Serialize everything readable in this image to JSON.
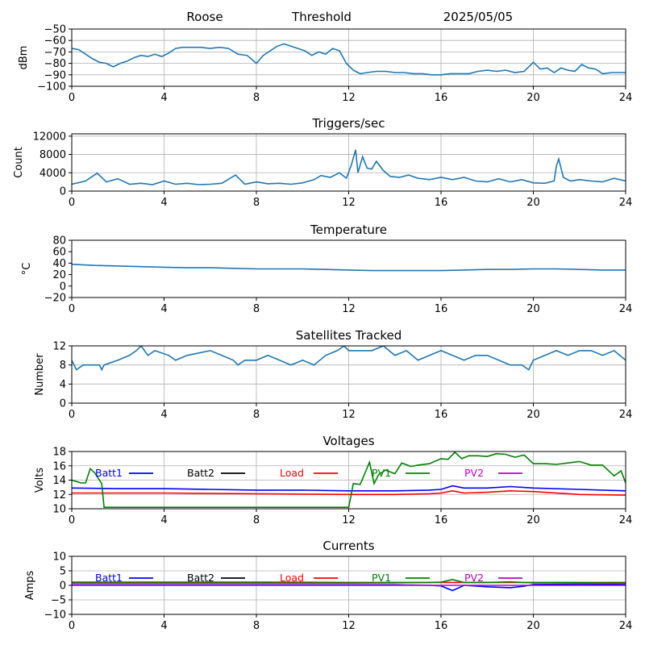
{
  "header": {
    "station": "Roose",
    "mode": "Threshold",
    "date": "2025/05/05"
  },
  "chart_data": [
    {
      "type": "line",
      "title": "",
      "xlabel": "",
      "ylabel": "dBm",
      "xlim": [
        0,
        24
      ],
      "ylim": [
        -100,
        -50
      ],
      "xticks": [
        0,
        4,
        8,
        12,
        16,
        20,
        24
      ],
      "yticks": [
        -100,
        -90,
        -80,
        -70,
        -60,
        -50
      ],
      "grid": true,
      "series": [
        {
          "color": "#1f77b4",
          "x": [
            0,
            0.3,
            0.6,
            0.9,
            1.2,
            1.5,
            1.8,
            2.1,
            2.4,
            2.7,
            3.0,
            3.3,
            3.6,
            3.9,
            4.2,
            4.5,
            4.8,
            5.2,
            5.6,
            6.0,
            6.4,
            6.8,
            7.2,
            7.6,
            8.0,
            8.3,
            8.6,
            8.9,
            9.2,
            9.5,
            9.8,
            10.1,
            10.4,
            10.7,
            11.0,
            11.3,
            11.6,
            11.9,
            12.2,
            12.5,
            12.8,
            13.2,
            13.6,
            14.0,
            14.4,
            14.8,
            15.2,
            15.6,
            16.0,
            16.4,
            16.8,
            17.2,
            17.6,
            18.0,
            18.4,
            18.8,
            19.2,
            19.6,
            20.0,
            20.3,
            20.6,
            20.9,
            21.2,
            21.5,
            21.8,
            22.1,
            22.4,
            22.7,
            23.0,
            23.4,
            24.0
          ],
          "values": [
            -67,
            -68,
            -72,
            -76,
            -79,
            -80,
            -83,
            -80,
            -78,
            -75,
            -73,
            -74,
            -72,
            -74,
            -71,
            -67,
            -66,
            -66,
            -66,
            -67,
            -66,
            -67,
            -72,
            -73,
            -80,
            -73,
            -69,
            -65,
            -63,
            -65,
            -67,
            -69,
            -73,
            -70,
            -72,
            -67,
            -69,
            -80,
            -86,
            -89,
            -88,
            -87,
            -87,
            -88,
            -88,
            -89,
            -89,
            -90,
            -90,
            -89,
            -89,
            -89,
            -87,
            -86,
            -87,
            -86,
            -88,
            -87,
            -79,
            -85,
            -84,
            -88,
            -84,
            -86,
            -87,
            -81,
            -84,
            -85,
            -89,
            -88,
            -88
          ]
        }
      ]
    },
    {
      "type": "line",
      "title": "Triggers/sec",
      "xlabel": "",
      "ylabel": "Count",
      "xlim": [
        0,
        24
      ],
      "ylim": [
        0,
        12500
      ],
      "xticks": [
        0,
        4,
        8,
        12,
        16,
        20,
        24
      ],
      "yticks": [
        0,
        4000,
        8000,
        12000
      ],
      "grid": true,
      "series": [
        {
          "color": "#1f77b4",
          "x": [
            0,
            0.6,
            1.1,
            1.5,
            2.0,
            2.5,
            3.0,
            3.5,
            4.0,
            4.5,
            5.0,
            5.5,
            6.0,
            6.5,
            7.1,
            7.5,
            8.0,
            8.5,
            9.0,
            9.5,
            10.0,
            10.5,
            10.8,
            11.2,
            11.6,
            11.9,
            12.1,
            12.3,
            12.4,
            12.6,
            12.8,
            13.0,
            13.2,
            13.5,
            13.8,
            14.2,
            14.6,
            15.0,
            15.5,
            16.0,
            16.5,
            17.0,
            17.5,
            18.0,
            18.5,
            19.0,
            19.5,
            20.0,
            20.5,
            20.9,
            21.0,
            21.1,
            21.3,
            21.6,
            22.0,
            22.5,
            23.0,
            23.5,
            24.0
          ],
          "values": [
            1500,
            2200,
            3900,
            2000,
            2700,
            1500,
            1700,
            1400,
            2200,
            1500,
            1700,
            1400,
            1500,
            1700,
            3500,
            1500,
            2000,
            1600,
            1700,
            1500,
            1800,
            2500,
            3400,
            3000,
            4000,
            2800,
            5500,
            9000,
            4000,
            7500,
            5000,
            4800,
            6500,
            4500,
            3200,
            3000,
            3500,
            2800,
            2500,
            3000,
            2500,
            3000,
            2200,
            2000,
            2700,
            2000,
            2500,
            1800,
            1700,
            2200,
            5500,
            7000,
            3000,
            2200,
            2500,
            2200,
            2000,
            2800,
            2200
          ]
        }
      ]
    },
    {
      "type": "line",
      "title": "Temperature",
      "xlabel": "",
      "ylabel": "°C",
      "xlim": [
        0,
        24
      ],
      "ylim": [
        -20,
        80
      ],
      "xticks": [
        0,
        4,
        8,
        12,
        16,
        20,
        24
      ],
      "yticks": [
        -20,
        0,
        20,
        40,
        60,
        80
      ],
      "grid": false,
      "series": [
        {
          "color": "#1f77b4",
          "x": [
            0,
            1,
            2,
            3,
            4,
            5,
            6,
            7,
            8,
            9,
            10,
            11,
            12,
            13,
            14,
            15,
            16,
            17,
            18,
            19,
            20,
            21,
            22,
            23,
            24
          ],
          "values": [
            38,
            36,
            35,
            34,
            33,
            32,
            32,
            31,
            30,
            30,
            30,
            29,
            28,
            27,
            27,
            27,
            27,
            28,
            29,
            29,
            30,
            30,
            29,
            28,
            28
          ]
        }
      ]
    },
    {
      "type": "line",
      "title": "Satellites Tracked",
      "xlabel": "",
      "ylabel": "Number",
      "xlim": [
        0,
        24
      ],
      "ylim": [
        0,
        12
      ],
      "xticks": [
        0,
        4,
        8,
        12,
        16,
        20,
        24
      ],
      "yticks": [
        0,
        4,
        8,
        12
      ],
      "grid": true,
      "series": [
        {
          "color": "#1f77b4",
          "x": [
            0,
            0.2,
            0.5,
            1.2,
            1.3,
            1.4,
            2.0,
            2.5,
            2.8,
            3.0,
            3.3,
            3.6,
            4.2,
            4.5,
            5.0,
            6.0,
            6.5,
            7.0,
            7.2,
            7.5,
            8.0,
            8.5,
            9.0,
            9.5,
            10.0,
            10.5,
            11.0,
            11.5,
            11.8,
            12.0,
            12.5,
            13.0,
            13.5,
            14.0,
            14.5,
            15.0,
            15.5,
            16.0,
            16.5,
            17.0,
            17.5,
            18.0,
            18.5,
            19.0,
            19.5,
            19.8,
            20.0,
            20.5,
            21.0,
            21.5,
            22.0,
            22.5,
            23.0,
            23.5,
            24.0
          ],
          "values": [
            9,
            7,
            8,
            8,
            7,
            8,
            9,
            10,
            11,
            12,
            10,
            11,
            10,
            9,
            10,
            11,
            10,
            9,
            8,
            9,
            9,
            10,
            9,
            8,
            9,
            8,
            10,
            11,
            12,
            11,
            11,
            11,
            12,
            10,
            11,
            9,
            10,
            11,
            10,
            9,
            10,
            10,
            9,
            8,
            8,
            7,
            9,
            10,
            11,
            10,
            11,
            11,
            10,
            11,
            9
          ]
        }
      ]
    },
    {
      "type": "line",
      "title": "Voltages",
      "xlabel": "",
      "ylabel": "Volts",
      "xlim": [
        0,
        24
      ],
      "ylim": [
        10,
        18
      ],
      "xticks": [
        0,
        4,
        8,
        12,
        16,
        20,
        24
      ],
      "yticks": [
        10,
        12,
        14,
        16,
        18
      ],
      "grid": true,
      "legend": "inline-top",
      "series": [
        {
          "name": "Batt1",
          "color": "#0000ff",
          "x": [
            0,
            2,
            4,
            6,
            8,
            10,
            12,
            14,
            15.5,
            16,
            16.5,
            17,
            18,
            19,
            20,
            22,
            24
          ],
          "values": [
            12.9,
            12.8,
            12.8,
            12.7,
            12.6,
            12.6,
            12.5,
            12.5,
            12.6,
            12.7,
            13.2,
            12.9,
            12.9,
            13.1,
            12.9,
            12.7,
            12.5
          ]
        },
        {
          "name": "Batt2",
          "color": "#000000",
          "x": [],
          "values": []
        },
        {
          "name": "Load",
          "color": "#ff0000",
          "x": [
            0,
            4,
            8,
            12,
            14,
            15.5,
            16,
            16.5,
            17,
            18,
            19,
            20,
            22,
            24
          ],
          "values": [
            12.2,
            12.2,
            12.1,
            12.0,
            12.0,
            12.1,
            12.2,
            12.5,
            12.2,
            12.3,
            12.5,
            12.4,
            12.0,
            11.9
          ]
        },
        {
          "name": "PV1",
          "color": "#008000",
          "x": [
            0,
            0.4,
            0.6,
            0.8,
            1.0,
            1.3,
            1.4,
            12.0,
            12.2,
            12.5,
            12.9,
            13.1,
            13.3,
            13.6,
            14.0,
            14.3,
            14.7,
            15.0,
            15.5,
            16.0,
            16.3,
            16.6,
            16.9,
            17.2,
            17.6,
            18.0,
            18.4,
            18.8,
            19.2,
            19.6,
            20.0,
            20.5,
            21.0,
            21.5,
            22.0,
            22.5,
            23.0,
            23.5,
            23.8,
            24.0
          ],
          "values": [
            14.0,
            13.6,
            13.6,
            15.6,
            15.0,
            13.5,
            10.2,
            10.2,
            13.5,
            13.4,
            16.5,
            13.5,
            14.8,
            15.4,
            14.9,
            16.4,
            15.9,
            16.1,
            16.3,
            17.0,
            16.9,
            17.9,
            17.0,
            17.4,
            17.4,
            17.3,
            17.7,
            17.6,
            17.2,
            17.5,
            16.3,
            16.3,
            16.2,
            16.4,
            16.6,
            16.1,
            16.1,
            14.6,
            15.3,
            13.6
          ]
        },
        {
          "name": "PV2",
          "color": "#bf00bf",
          "x": [],
          "values": []
        }
      ]
    },
    {
      "type": "line",
      "title": "Currents",
      "xlabel": "",
      "ylabel": "Amps",
      "xlim": [
        0,
        24
      ],
      "ylim": [
        -10,
        10
      ],
      "xticks": [
        0,
        4,
        8,
        12,
        16,
        20,
        24
      ],
      "yticks": [
        -10,
        -5,
        0,
        5,
        10
      ],
      "grid": true,
      "legend": "inline-top",
      "series": [
        {
          "name": "Batt1",
          "color": "#0000ff",
          "x": [
            0,
            4,
            8,
            12,
            14,
            15.5,
            16,
            16.5,
            17,
            18,
            19,
            19.6,
            20,
            22,
            24
          ],
          "values": [
            0.2,
            0.2,
            0.2,
            0.2,
            0.2,
            0.0,
            -0.2,
            -1.8,
            0.0,
            -0.5,
            -0.8,
            -0.3,
            0.3,
            0.4,
            0.3
          ]
        },
        {
          "name": "Batt2",
          "color": "#000000",
          "x": [],
          "values": []
        },
        {
          "name": "Load",
          "color": "#ff0000",
          "x": [
            0,
            4,
            8,
            12,
            16,
            20,
            24
          ],
          "values": [
            1.1,
            1.1,
            1.1,
            1.0,
            1.0,
            1.0,
            1.0
          ]
        },
        {
          "name": "PV1",
          "color": "#008000",
          "x": [
            0,
            12,
            14,
            15.5,
            16,
            16.5,
            17,
            18,
            19,
            19.6,
            20,
            22,
            24
          ],
          "values": [
            0.8,
            0.8,
            0.9,
            1.0,
            1.1,
            2.0,
            1.0,
            1.0,
            1.2,
            1.0,
            0.9,
            0.9,
            0.8
          ]
        },
        {
          "name": "PV2",
          "color": "#bf00bf",
          "x": [
            0,
            24
          ],
          "values": [
            0.0,
            0.0
          ]
        }
      ]
    }
  ]
}
